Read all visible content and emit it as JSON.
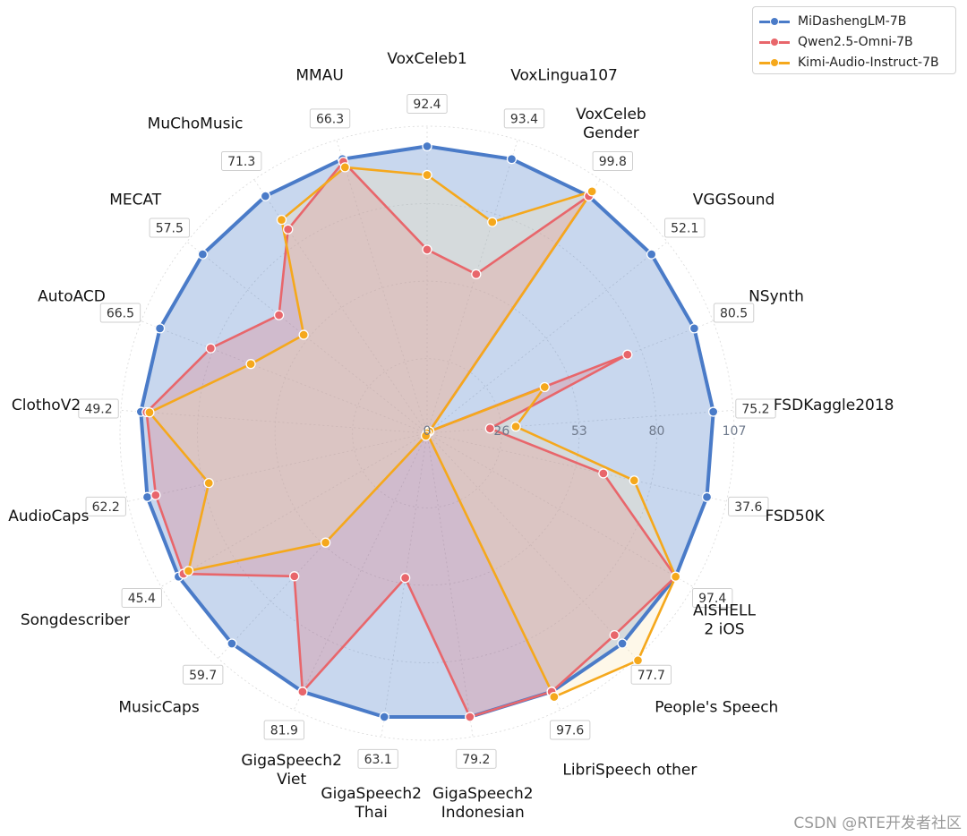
{
  "chart_data": {
    "type": "radar",
    "axes": [
      {
        "label": [
          "VoxCeleb1"
        ],
        "max_label": "92.4"
      },
      {
        "label": [
          "VoxLingua107"
        ],
        "max_label": "93.4"
      },
      {
        "label": [
          "VoxCeleb",
          "Gender"
        ],
        "max_label": "99.8"
      },
      {
        "label": [
          "VGGSound"
        ],
        "max_label": "52.1"
      },
      {
        "label": [
          "NSynth"
        ],
        "max_label": "80.5"
      },
      {
        "label": [
          "FSDKaggle2018"
        ],
        "max_label": "75.2"
      },
      {
        "label": [
          "FSD50K"
        ],
        "max_label": "37.6"
      },
      {
        "label": [
          "AISHELL",
          "2 iOS"
        ],
        "max_label": "97.4"
      },
      {
        "label": [
          "People's Speech"
        ],
        "max_label": "77.7"
      },
      {
        "label": [
          "LibriSpeech other"
        ],
        "max_label": "97.6"
      },
      {
        "label": [
          "GigaSpeech2",
          "Indonesian"
        ],
        "max_label": "79.2"
      },
      {
        "label": [
          "GigaSpeech2",
          "Thai"
        ],
        "max_label": "63.1"
      },
      {
        "label": [
          "GigaSpeech2",
          "Viet"
        ],
        "max_label": "81.9"
      },
      {
        "label": [
          "MusicCaps"
        ],
        "max_label": "59.7"
      },
      {
        "label": [
          "Songdescriber"
        ],
        "max_label": "45.4"
      },
      {
        "label": [
          "AudioCaps"
        ],
        "max_label": "62.2"
      },
      {
        "label": [
          "ClothoV2"
        ],
        "max_label": "49.2"
      },
      {
        "label": [
          "AutoACD"
        ],
        "max_label": "66.5"
      },
      {
        "label": [
          "MECAT"
        ],
        "max_label": "57.5"
      },
      {
        "label": [
          "MuChoMusic"
        ],
        "max_label": "71.3"
      },
      {
        "label": [
          "MMAU"
        ],
        "max_label": "66.3"
      }
    ],
    "radial_ticks": [
      "0",
      "26",
      "53",
      "80",
      "107"
    ],
    "rlim": [
      0,
      107
    ],
    "grid": true,
    "legend_position": "top-right",
    "series": [
      {
        "name": "MiDashengLM-7B",
        "color": "#4a7bc8",
        "fill": "#4a7bc8",
        "values": [
          100,
          100,
          100,
          100,
          100,
          100,
          100,
          100,
          100,
          100,
          100,
          100,
          100,
          100,
          100,
          100,
          100,
          100,
          100,
          100,
          100
        ]
      },
      {
        "name": "Qwen2.5-Omni-7B",
        "color": "#e8666b",
        "fill": "#e8666b",
        "values": [
          64,
          58,
          100,
          1,
          75,
          22,
          63,
          100,
          96,
          100,
          100,
          51,
          100,
          68,
          98,
          97,
          98,
          81,
          66,
          86,
          99
        ]
      },
      {
        "name": "Kimi-Audio-Instruct-7B",
        "color": "#f5a81c",
        "fill": "#fbe3a6",
        "values": [
          90,
          77,
          102,
          1,
          44,
          31,
          74,
          100,
          108,
          102,
          0,
          0,
          1,
          52,
          96,
          78,
          97,
          66,
          55,
          90,
          97
        ]
      }
    ]
  },
  "legend": {
    "items": [
      "MiDashengLM-7B",
      "Qwen2.5-Omni-7B",
      "Kimi-Audio-Instruct-7B"
    ]
  },
  "watermark": "CSDN @RTE开发者社区"
}
